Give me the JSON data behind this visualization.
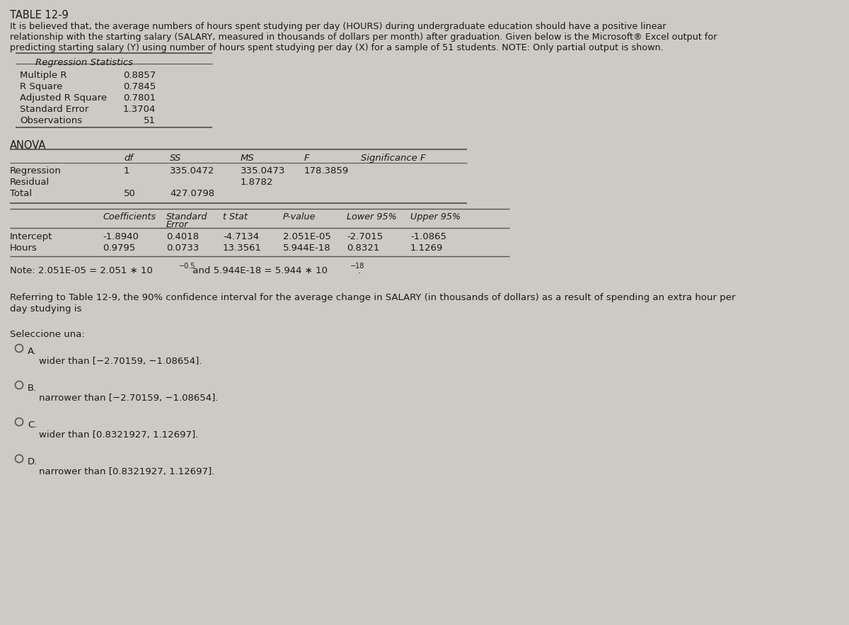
{
  "title": "TABLE 12-9",
  "desc1": "It is believed that, the average numbers of hours spent studying per day (HOURS) during undergraduate education should have a positive linear",
  "desc2": "relationship with the starting salary (SALARY, measured in thousands of dollars per month) after graduation. Given below is the Microsoft® Excel output for",
  "desc3": "predicting starting salary (Y) using number of hours spent studying per day (X) for a sample of 51 students. NOTE: Only partial output is shown.",
  "reg_stats_header": "Regression Statistics",
  "reg_stats": [
    [
      "Multiple R",
      "0.8857"
    ],
    [
      "R Square",
      "0.7845"
    ],
    [
      "Adjusted R Square",
      "0.7801"
    ],
    [
      "Standard Error",
      "1.3704"
    ],
    [
      "Observations",
      "51"
    ]
  ],
  "anova_header": "ANOVA",
  "anova_col_headers": [
    "df",
    "SS",
    "MS",
    "F",
    "Significance F"
  ],
  "anova_rows": [
    [
      "Regression",
      "1",
      "335.0472",
      "335.0473",
      "178.3859",
      ""
    ],
    [
      "Residual",
      "",
      "",
      "1.8782",
      "",
      ""
    ],
    [
      "Total",
      "50",
      "427.0798",
      "",
      "",
      ""
    ]
  ],
  "coeff_rows": [
    [
      "Intercept",
      "-1.8940",
      "0.4018",
      "-4.7134",
      "2.051E-05",
      "-2.7015",
      "-1.0865"
    ],
    [
      "Hours",
      "0.9795",
      "0.0733",
      "13.3561",
      "5.944E-18",
      "0.8321",
      "1.1269"
    ]
  ],
  "question": "Referring to Table 12-9, the 90% confidence interval for the average change in SALARY (in thousands of dollars) as a result of spending an extra hour per\nday studying is",
  "select_text": "Seleccione una:",
  "options": [
    [
      "A.",
      "wider than [−2.70159, −1.08654]."
    ],
    [
      "B.",
      "narrower than [−2.70159, −1.08654]."
    ],
    [
      "C.",
      "wider than [0.8321927, 1.12697]."
    ],
    [
      "D.",
      "narrower than [0.8321927, 1.12697]."
    ]
  ],
  "bg_color": "#cdc9c3",
  "text_color": "#1a1a1a",
  "line_color": "#555555"
}
